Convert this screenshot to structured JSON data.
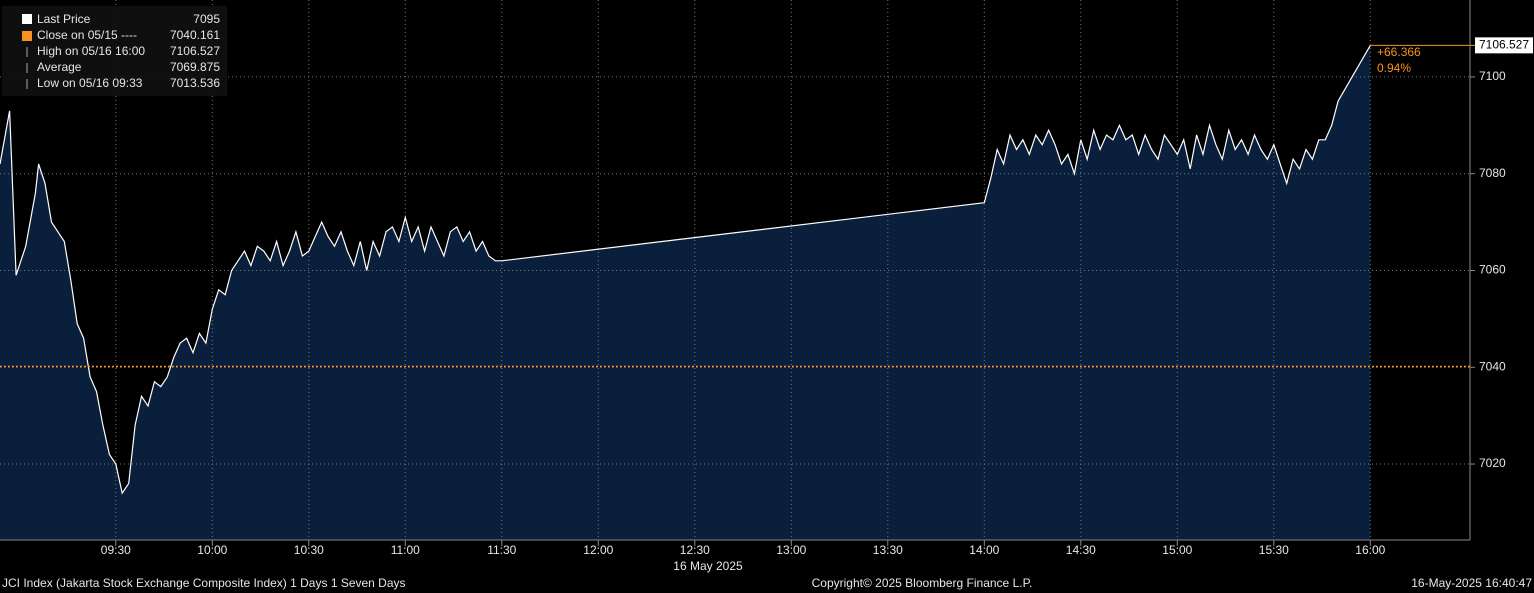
{
  "chart_data": {
    "type": "area",
    "x": [
      "08:54",
      "08:57",
      "08:59",
      "09:02",
      "09:05",
      "09:06",
      "09:08",
      "09:10",
      "09:12",
      "09:14",
      "09:16",
      "09:18",
      "09:20",
      "09:22",
      "09:24",
      "09:26",
      "09:28",
      "09:30",
      "09:32",
      "09:34",
      "09:36",
      "09:38",
      "09:40",
      "09:42",
      "09:44",
      "09:46",
      "09:48",
      "09:50",
      "09:52",
      "09:54",
      "09:56",
      "09:58",
      "10:00",
      "10:02",
      "10:04",
      "10:06",
      "10:08",
      "10:10",
      "10:12",
      "10:14",
      "10:16",
      "10:18",
      "10:20",
      "10:22",
      "10:24",
      "10:26",
      "10:28",
      "10:30",
      "10:32",
      "10:34",
      "10:36",
      "10:38",
      "10:40",
      "10:42",
      "10:44",
      "10:46",
      "10:48",
      "10:50",
      "10:52",
      "10:54",
      "10:56",
      "10:58",
      "11:00",
      "11:02",
      "11:04",
      "11:06",
      "11:08",
      "11:10",
      "11:12",
      "11:14",
      "11:16",
      "11:18",
      "11:20",
      "11:22",
      "11:24",
      "11:26",
      "11:28",
      "11:30",
      "14:00",
      "14:02",
      "14:04",
      "14:06",
      "14:08",
      "14:10",
      "14:12",
      "14:14",
      "14:16",
      "14:18",
      "14:20",
      "14:22",
      "14:24",
      "14:26",
      "14:28",
      "14:30",
      "14:32",
      "14:34",
      "14:36",
      "14:38",
      "14:40",
      "14:42",
      "14:44",
      "14:46",
      "14:48",
      "14:50",
      "14:52",
      "14:54",
      "14:56",
      "14:58",
      "15:00",
      "15:02",
      "15:04",
      "15:06",
      "15:08",
      "15:10",
      "15:12",
      "15:14",
      "15:16",
      "15:18",
      "15:20",
      "15:22",
      "15:24",
      "15:26",
      "15:28",
      "15:30",
      "15:32",
      "15:34",
      "15:36",
      "15:38",
      "15:40",
      "15:42",
      "15:44",
      "15:46",
      "15:48",
      "15:50",
      "16:00"
    ],
    "series": [
      {
        "name": "Last Price",
        "color": "#ffffff",
        "fill": "#0a1f3b",
        "values": [
          7082,
          7093,
          7059,
          7065,
          7076,
          7082,
          7078,
          7070,
          7068,
          7066,
          7058,
          7049,
          7046,
          7038,
          7035,
          7028,
          7022,
          7020,
          7014,
          7016,
          7028,
          7034,
          7032,
          7037,
          7036,
          7038,
          7042,
          7045,
          7046,
          7043,
          7047,
          7045,
          7052,
          7056,
          7055,
          7060,
          7062,
          7064,
          7061,
          7065,
          7064,
          7062,
          7066,
          7061,
          7064,
          7068,
          7063,
          7064,
          7067,
          7070,
          7067,
          7065,
          7068,
          7064,
          7061,
          7066,
          7060,
          7066,
          7063,
          7068,
          7069,
          7066,
          7071,
          7066,
          7069,
          7064,
          7069,
          7066,
          7063,
          7068,
          7069,
          7066,
          7068,
          7064,
          7066,
          7063,
          7062,
          7062,
          7074,
          7079,
          7085,
          7082,
          7088,
          7085,
          7087,
          7084,
          7088,
          7086,
          7089,
          7086,
          7082,
          7084,
          7080,
          7087,
          7083,
          7089,
          7085,
          7088,
          7087,
          7090,
          7087,
          7088,
          7084,
          7088,
          7085,
          7083,
          7088,
          7086,
          7084,
          7087,
          7081,
          7088,
          7084,
          7090,
          7086,
          7083,
          7089,
          7085,
          7087,
          7084,
          7088,
          7085,
          7083,
          7086,
          7082,
          7078,
          7083,
          7081,
          7085,
          7083,
          7087,
          7087,
          7090,
          7095,
          7106.527
        ]
      }
    ],
    "legend_items": [
      {
        "label": "Close on 05/15 ----",
        "value": 7040.161,
        "color": "#f7931e"
      },
      {
        "label": "High on 05/16 16:00",
        "value": 7106.527
      },
      {
        "label": "Average",
        "value": 7069.875
      },
      {
        "label": "Low on 05/16 09:33",
        "value": 7013.536
      }
    ],
    "change": "+66.366",
    "change_pct": "0.94%",
    "xlim": [
      "08:54",
      "16:31"
    ],
    "xticks": [
      "09:30",
      "10:00",
      "10:30",
      "11:00",
      "11:30",
      "12:00",
      "12:30",
      "13:00",
      "13:30",
      "14:00",
      "14:30",
      "15:00",
      "15:30",
      "16:00"
    ],
    "x_label": "16 May 2025",
    "ylim": [
      7004.3,
      7115.9
    ],
    "yticks": [
      7020,
      7040,
      7060,
      7080,
      7100
    ],
    "grid": true,
    "footer_left": "JCI Index (Jakarta Stock Exchange Composite Index) 1 Days 1 Seven Days",
    "footer_center": "Copyright© 2025 Bloomberg Finance L.P.",
    "footer_right": "16-May-2025 16:40:47"
  }
}
